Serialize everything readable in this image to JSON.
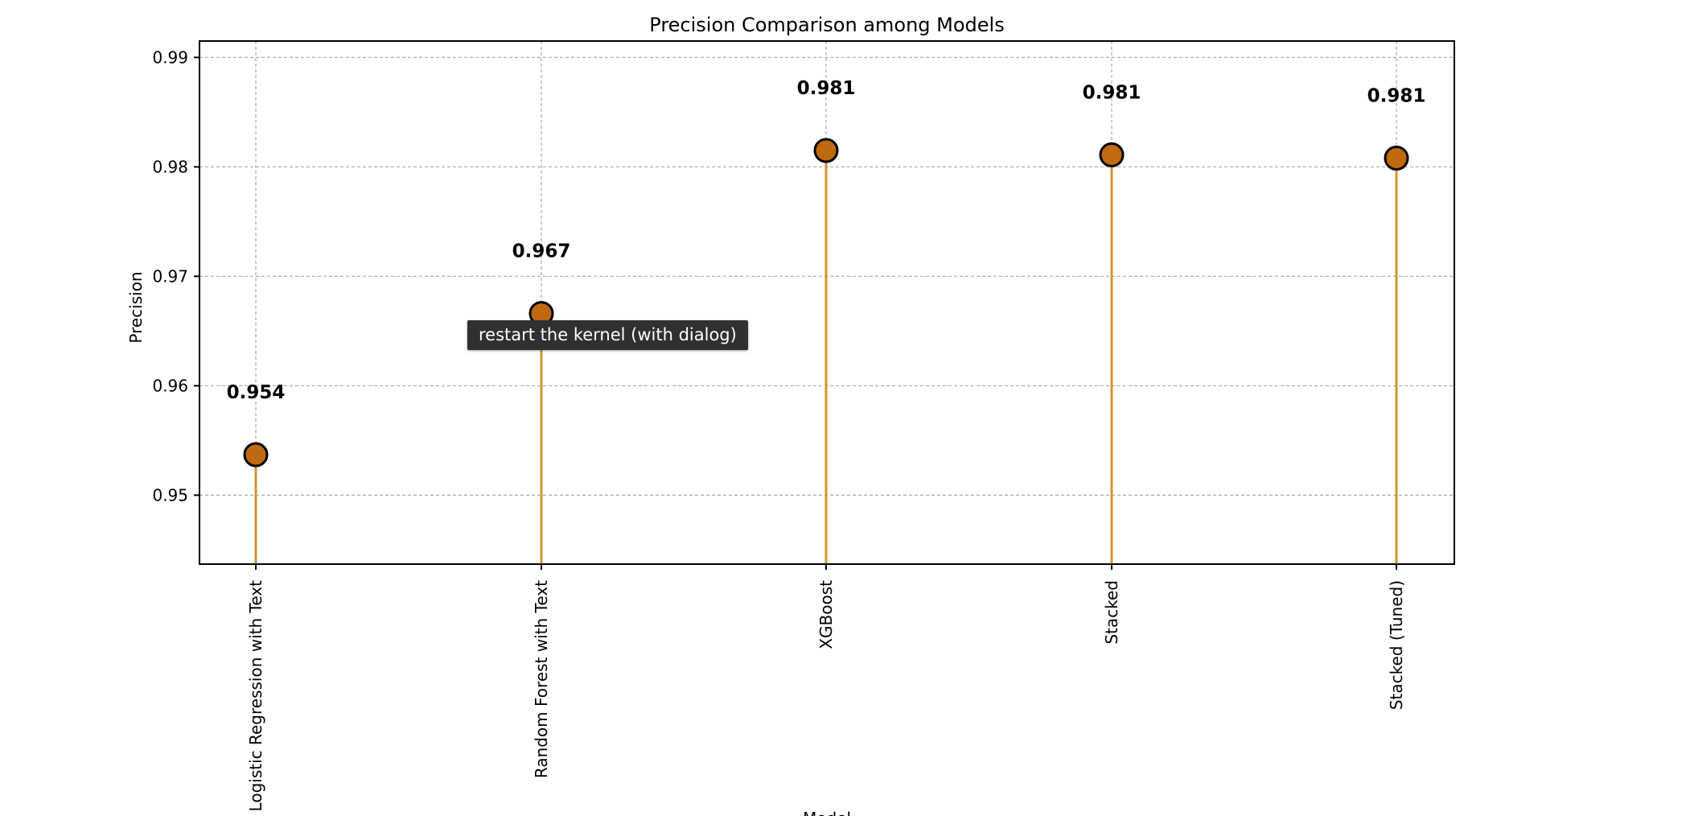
{
  "chart_data": {
    "type": "lollipop",
    "title": "Precision Comparison among Models",
    "xlabel": "Model",
    "ylabel": "Precision",
    "categories": [
      "Logistic Regression with Text",
      "Random Forest with Text",
      "XGBoost",
      "Stacked",
      "Stacked (Tuned)"
    ],
    "values": [
      0.9537,
      0.9666,
      0.9815,
      0.9811,
      0.9808
    ],
    "data_labels": [
      "0.954",
      "0.967",
      "0.981",
      "0.981",
      "0.981"
    ],
    "ylim": [
      0.9437,
      0.9915
    ],
    "yticks": [
      0.95,
      0.96,
      0.97,
      0.98,
      0.99
    ],
    "ytick_labels": [
      "0.95",
      "0.96",
      "0.97",
      "0.98",
      "0.99"
    ],
    "grid": true,
    "marker_color": "#c06a10",
    "stem_color": "#d09530"
  },
  "tooltip": {
    "text": "restart the kernel (with dialog)"
  }
}
